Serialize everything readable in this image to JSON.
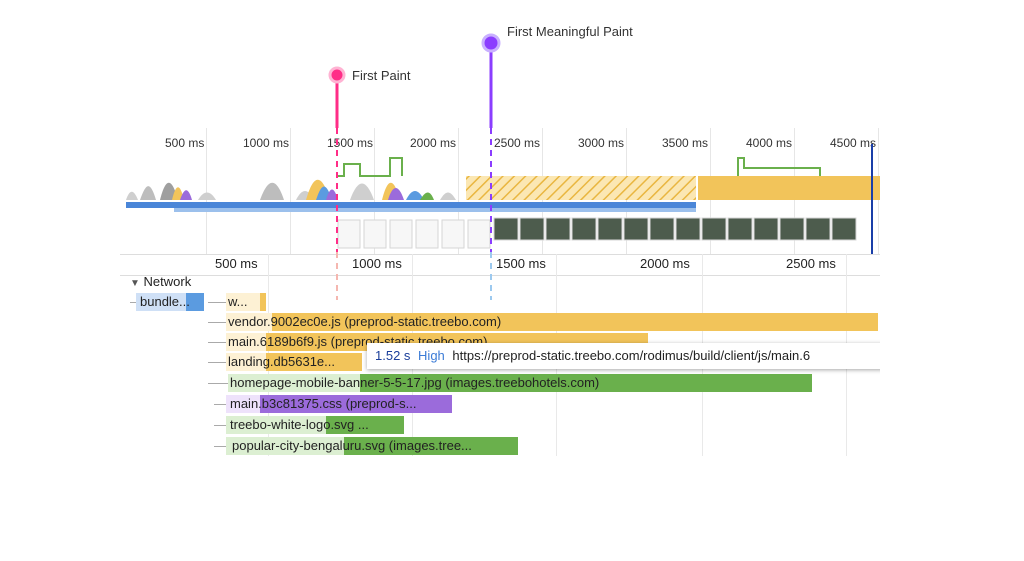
{
  "markers": {
    "first_paint": {
      "label": "First Paint",
      "color": "#ff2d87"
    },
    "first_meaningful": {
      "label": "First Meaningful Paint",
      "color": "#8b3dff"
    }
  },
  "overview": {
    "ticks": [
      "500 ms",
      "1000 ms",
      "1500 ms",
      "2000 ms",
      "2500 ms",
      "3000 ms",
      "3500 ms",
      "4000 ms",
      "4500 ms"
    ]
  },
  "ruler": {
    "ticks": [
      "500 ms",
      "1000 ms",
      "1500 ms",
      "2000 ms",
      "2500 ms"
    ]
  },
  "network": {
    "header": "Network",
    "collapse_icon": "triangle-down-icon",
    "rows": [
      {
        "label": "bundle...",
        "color": "#5b9be0"
      },
      {
        "label": "w...",
        "color": "#f2c45a"
      },
      {
        "label": "vendor.9002ec0e.js (preprod-static.treebo.com)",
        "color": "#f2c45a"
      },
      {
        "label": "main.6189b6f9.js (preprod-static.treebo.com)",
        "color": "#f2c45a"
      },
      {
        "label": "landing.db5631e...",
        "color": "#f2c45a"
      },
      {
        "label": "homepage-mobile-banner-5-5-17.jpg (images.treebohotels.com)",
        "color": "#6ab04c"
      },
      {
        "label": "main.b3c81375.css (preprod-s...",
        "color": "#9b6bdb"
      },
      {
        "label": "treebo-white-logo.svg ...",
        "color": "#6ab04c"
      },
      {
        "label": "popular-city-bengaluru.svg (images.tree...",
        "color": "#6ab04c"
      }
    ]
  },
  "tooltip": {
    "time": "1.52 s",
    "priority": "High",
    "url": "https://preprod-static.treebo.com/rodimus/build/client/js/main.6"
  },
  "colors": {
    "script": "#f2c45a",
    "image": "#6ab04c",
    "style": "#9b6bdb",
    "document": "#5b9be0"
  }
}
